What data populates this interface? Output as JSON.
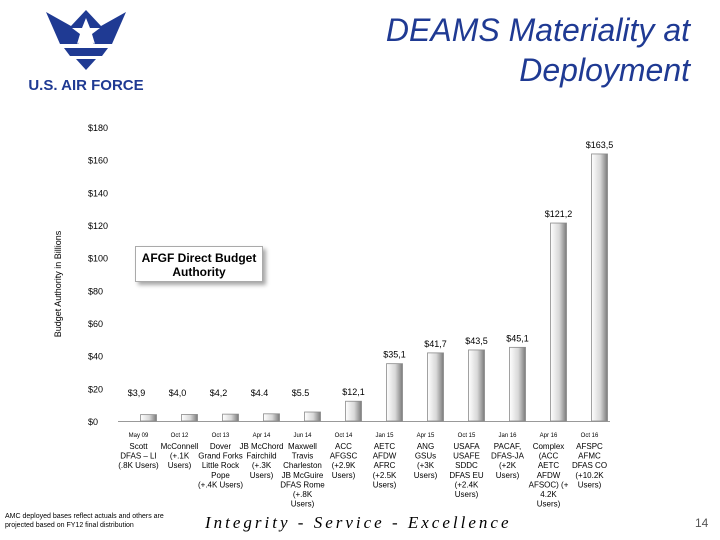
{
  "header": {
    "title_line1": "DEAMS Materiality at",
    "title_line2": "Deployment",
    "logo_text": "U.S. AIR FORCE"
  },
  "footer": {
    "note": "AMC deployed bases reflect actuals and others are projected based on FY12 final distribution",
    "motto": "Integrity - Service - Excellence",
    "page_number": "14"
  },
  "colors": {
    "title": "#1f3a93",
    "bar_light": "#ffffff",
    "bar_dark": "#7a7a7a"
  },
  "chart_data": {
    "type": "bar",
    "ylabel": "Budget Authority in Billions",
    "ylim": [
      0,
      180
    ],
    "y_ticks": [
      0,
      20,
      40,
      60,
      80,
      100,
      120,
      140,
      160,
      180
    ],
    "y_tick_labels": [
      "$0",
      "$20",
      "$40",
      "$60",
      "$80",
      "$100",
      "$120",
      "$140",
      "$160",
      "$180"
    ],
    "annotation": "AFGF Direct Budget Authority",
    "categories": [
      {
        "date": "May 09",
        "desc": [
          "Scott",
          "DFAS – LI",
          "(.8K Users)"
        ]
      },
      {
        "date": "Oct 12",
        "desc": [
          "McConnell",
          "(+.1K",
          "Users)"
        ]
      },
      {
        "date": "Oct 13",
        "desc": [
          "Dover",
          "Grand Forks",
          "Little Rock",
          "Pope",
          "(+.4K Users)"
        ]
      },
      {
        "date": "Apr 14",
        "desc": [
          "JB McChord",
          "Fairchild",
          "(+.3K",
          "Users)"
        ]
      },
      {
        "date": "Jun 14",
        "desc": [
          "Maxwell",
          "Travis",
          "Charleston",
          "JB McGuire",
          "DFAS Rome",
          "(+.8K",
          "Users)"
        ]
      },
      {
        "date": "Oct 14",
        "desc": [
          "ACC",
          "AFGSC",
          "(+2.9K",
          "Users)"
        ]
      },
      {
        "date": "Jan 15",
        "desc": [
          "AETC",
          "AFDW",
          "AFRC",
          "(+2.5K",
          "Users)"
        ]
      },
      {
        "date": "Apr 15",
        "desc": [
          "ANG",
          "GSUs",
          "(+3K",
          "Users)"
        ]
      },
      {
        "date": "Oct 15",
        "desc": [
          "USAFA",
          "USAFE",
          "SDDC",
          "DFAS EU",
          "(+2.4K",
          "Users)"
        ]
      },
      {
        "date": "Jan 16",
        "desc": [
          "PACAF,",
          "DFAS-JA",
          "(+2K",
          "Users)"
        ]
      },
      {
        "date": "Apr 16",
        "desc": [
          "Complex",
          "(ACC",
          "AETC",
          "AFDW",
          "AFSOC) (+",
          "4.2K",
          "Users)"
        ]
      },
      {
        "date": "Oct 16",
        "desc": [
          "AFSPC",
          "AFMC",
          "DFAS CO",
          "(+10.2K",
          "Users)"
        ]
      }
    ],
    "values": [
      3.9,
      4.0,
      4.2,
      4.4,
      5.5,
      12.1,
      35.1,
      41.7,
      43.5,
      45.1,
      121.2,
      163.5
    ],
    "value_labels": [
      "$3,9",
      "$4,0",
      "$4,2",
      "$4.4",
      "$5.5",
      "$12,1",
      "$35,1",
      "$41,7",
      "$43,5",
      "$45,1",
      "$121,2",
      "$163,5"
    ]
  }
}
